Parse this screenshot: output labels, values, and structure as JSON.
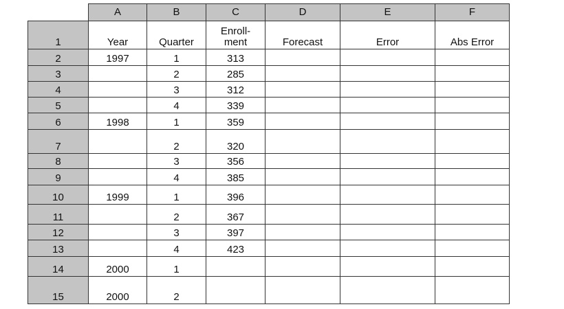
{
  "columns": [
    "A",
    "B",
    "C",
    "D",
    "E",
    "F"
  ],
  "header_row": {
    "number": "1",
    "cells": [
      "Year",
      "Quarter",
      "Enroll-\nment",
      "Forecast",
      "Error",
      "Abs Error"
    ]
  },
  "rows": [
    {
      "number": "2",
      "cells": [
        "1997",
        "1",
        "313",
        "",
        "",
        ""
      ]
    },
    {
      "number": "3",
      "cells": [
        "",
        "2",
        "285",
        "",
        "",
        ""
      ]
    },
    {
      "number": "4",
      "cells": [
        "",
        "3",
        "312",
        "",
        "",
        ""
      ]
    },
    {
      "number": "5",
      "cells": [
        "",
        "4",
        "339",
        "",
        "",
        ""
      ]
    },
    {
      "number": "6",
      "cells": [
        "1998",
        "1",
        "359",
        "",
        "",
        ""
      ]
    },
    {
      "number": "7",
      "cells": [
        "",
        "2",
        "320",
        "",
        "",
        ""
      ]
    },
    {
      "number": "8",
      "cells": [
        "",
        "3",
        "356",
        "",
        "",
        ""
      ]
    },
    {
      "number": "9",
      "cells": [
        "",
        "4",
        "385",
        "",
        "",
        ""
      ]
    },
    {
      "number": "10",
      "cells": [
        "1999",
        "1",
        "396",
        "",
        "",
        ""
      ]
    },
    {
      "number": "11",
      "cells": [
        "",
        "2",
        "367",
        "",
        "",
        ""
      ]
    },
    {
      "number": "12",
      "cells": [
        "",
        "3",
        "397",
        "",
        "",
        ""
      ]
    },
    {
      "number": "13",
      "cells": [
        "",
        "4",
        "423",
        "",
        "",
        ""
      ]
    },
    {
      "number": "14",
      "cells": [
        "2000",
        "1",
        "",
        "",
        "",
        ""
      ]
    },
    {
      "number": "15",
      "cells": [
        "2000",
        "2",
        "",
        "",
        "",
        ""
      ]
    }
  ],
  "colors": {
    "header_fill": "#c4c4c4",
    "grid": "#333333"
  }
}
